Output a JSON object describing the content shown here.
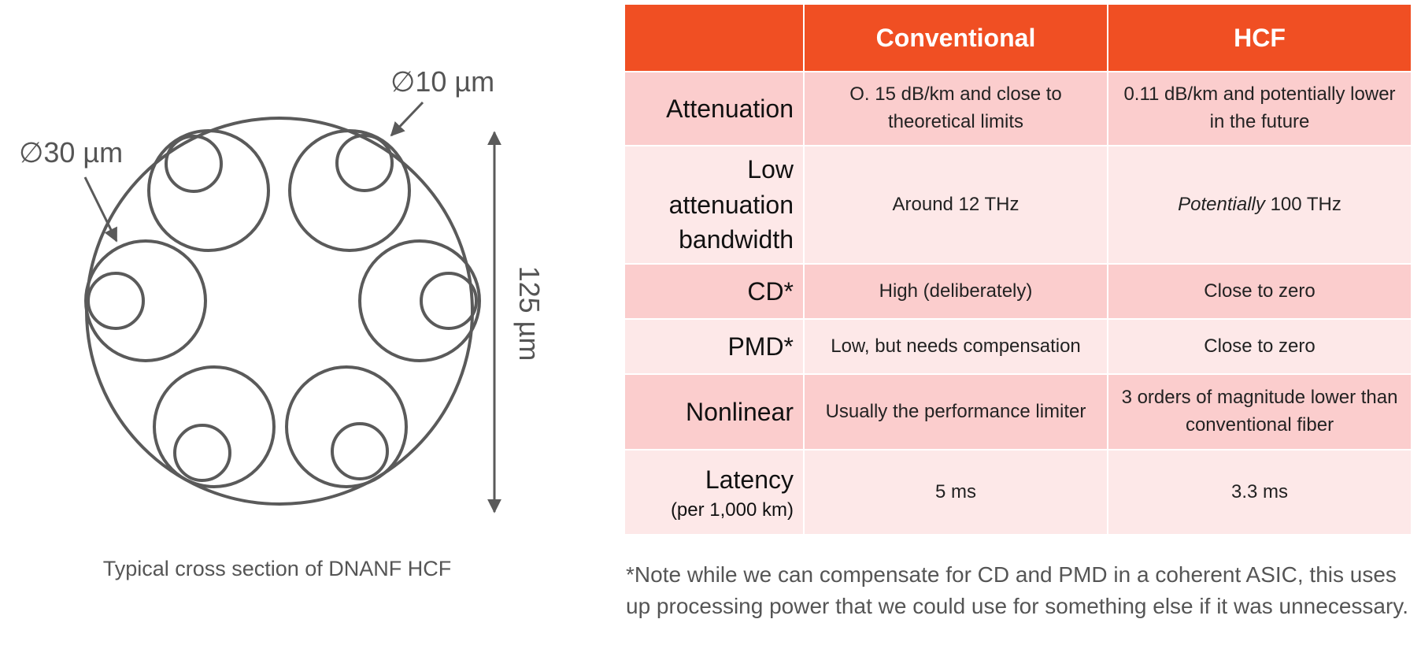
{
  "diagram": {
    "label_outer": "∅30 µm",
    "label_inner": "∅10 µm",
    "label_diameter": "125 µm",
    "caption": "Typical cross section of DNANF HCF",
    "stroke_color": "#5a5a5a"
  },
  "table": {
    "header": {
      "blank": "",
      "col1": "Conventional",
      "col2": "HCF"
    },
    "rows": [
      {
        "label": "Attenuation",
        "sub": "",
        "conventional": "O. 15 dB/km and close to theoretical limits",
        "hcf": "0.11 dB/km and potentially lower in the future",
        "hcf_em": ""
      },
      {
        "label": "Low attenuation bandwidth",
        "sub": "",
        "conventional": "Around 12 THz",
        "hcf_em": "Potentially",
        "hcf": "100 THz"
      },
      {
        "label": "CD*",
        "sub": "",
        "conventional": "High (deliberately)",
        "hcf": "Close to zero",
        "hcf_em": ""
      },
      {
        "label": "PMD*",
        "sub": "",
        "conventional": "Low, but needs compensation",
        "hcf": "Close to zero",
        "hcf_em": ""
      },
      {
        "label": "Nonlinear",
        "sub": "",
        "conventional": "Usually the performance limiter",
        "hcf": "3 orders of magnitude lower than conventional fiber",
        "hcf_em": ""
      },
      {
        "label": "Latency",
        "sub": "(per 1,000 km)",
        "conventional": "5 ms",
        "hcf": "3.3 ms",
        "hcf_em": ""
      }
    ]
  },
  "footnote": "*Note while we can compensate for CD and PMD in a coherent ASIC, this uses up processing power that we could use for something else if it was unnecessary.",
  "colors": {
    "header_bg": "#f04f23",
    "row_dark": "#fbcdcd",
    "row_light": "#fde8e8"
  }
}
